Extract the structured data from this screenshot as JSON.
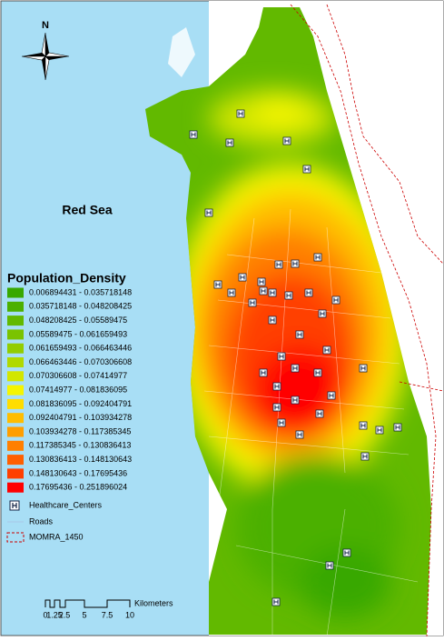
{
  "north": "N",
  "sea_label": "Red Sea",
  "legend": {
    "title": "Population_Density",
    "classes": [
      {
        "label": "0.006894431 - 0.035718148",
        "color": "#38a800"
      },
      {
        "label": "0.035718148 - 0.048208425",
        "color": "#4cb000"
      },
      {
        "label": "0.048208425 - 0.05589475",
        "color": "#62b900"
      },
      {
        "label": "0.05589475 - 0.061659493",
        "color": "#7ac300"
      },
      {
        "label": "0.061659493 - 0.066463446",
        "color": "#92cd00"
      },
      {
        "label": "0.066463446 - 0.070306608",
        "color": "#b0d900"
      },
      {
        "label": "0.070306608 - 0.07414977",
        "color": "#d2e600"
      },
      {
        "label": "0.07414977 - 0.081836095",
        "color": "#f5f500"
      },
      {
        "label": "0.081836095 - 0.092404791",
        "color": "#ffdd00"
      },
      {
        "label": "0.092404791 - 0.103934278",
        "color": "#ffbd00"
      },
      {
        "label": "0.103934278 - 0.117385345",
        "color": "#ff9e00"
      },
      {
        "label": "0.117385345 - 0.130836413",
        "color": "#ff7f00"
      },
      {
        "label": "0.130836413 - 0.148130643",
        "color": "#ff5f00"
      },
      {
        "label": "0.148130643 - 0.17695436",
        "color": "#ff3f00"
      },
      {
        "label": "0.17695436 - 0.251896024",
        "color": "#ff0000"
      }
    ],
    "healthcare": "Healthcare_Centers",
    "roads": "Roads",
    "boundary": "MOMRA_1450"
  },
  "scale_bar": {
    "labels": [
      "0",
      "1.25",
      "2.5",
      "5",
      "7.5",
      "10"
    ],
    "unit": "Kilometers"
  }
}
